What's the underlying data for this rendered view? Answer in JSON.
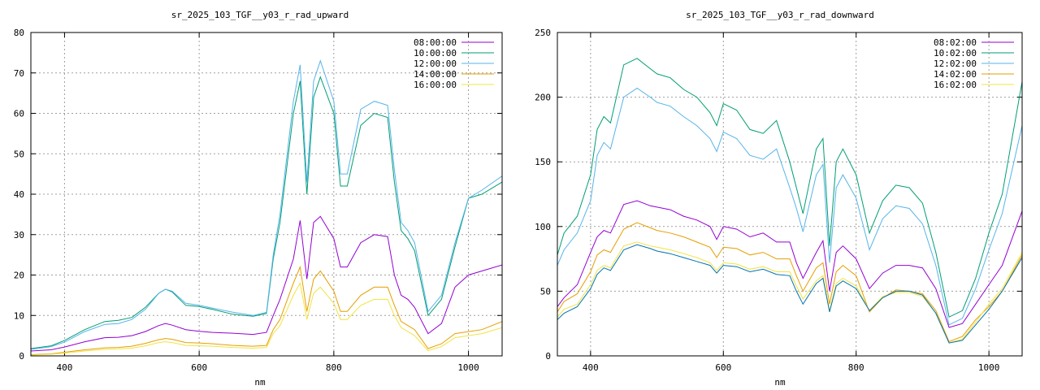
{
  "chart_data": [
    {
      "type": "line",
      "title": "sr_2025_103_TGF__y03_r_rad_upward",
      "xlabel": "nm",
      "ylabel": "",
      "xlim": [
        350,
        1050
      ],
      "ylim": [
        0,
        80
      ],
      "xticks": [
        400,
        600,
        800,
        1000
      ],
      "yticks": [
        0,
        10,
        20,
        30,
        40,
        50,
        60,
        70,
        80
      ],
      "grid": true,
      "legend": "top-right",
      "series": [
        {
          "name": "08:00:00",
          "color": "#9400d3",
          "x": [
            350,
            380,
            400,
            430,
            460,
            480,
            500,
            520,
            540,
            550,
            560,
            580,
            600,
            620,
            650,
            680,
            700,
            710,
            720,
            740,
            750,
            760,
            770,
            780,
            800,
            810,
            820,
            840,
            860,
            880,
            890,
            900,
            910,
            920,
            940,
            960,
            980,
            1000,
            1020,
            1050
          ],
          "y": [
            1.2,
            1.5,
            2.2,
            3.5,
            4.5,
            4.6,
            5.0,
            6.0,
            7.5,
            8.0,
            7.6,
            6.5,
            6.1,
            5.8,
            5.6,
            5.3,
            5.8,
            10,
            14,
            24,
            33.5,
            19,
            33,
            34.5,
            29,
            22,
            22,
            28,
            30,
            29.5,
            20,
            15,
            14,
            12,
            5.5,
            8,
            17,
            20,
            21,
            22.5
          ]
        },
        {
          "name": "10:00:00",
          "color": "#009e73",
          "x": [
            350,
            380,
            400,
            430,
            460,
            480,
            500,
            520,
            540,
            550,
            560,
            580,
            600,
            620,
            650,
            680,
            700,
            710,
            720,
            740,
            750,
            760,
            770,
            780,
            800,
            810,
            820,
            840,
            860,
            880,
            890,
            900,
            910,
            920,
            940,
            960,
            980,
            1000,
            1020,
            1050
          ],
          "y": [
            1.8,
            2.5,
            3.8,
            6.5,
            8.5,
            8.8,
            9.5,
            12,
            15.5,
            16.5,
            15.8,
            12.5,
            12.2,
            11.5,
            10.3,
            9.8,
            10.5,
            24,
            33,
            60,
            68,
            40,
            64,
            69,
            60,
            42,
            42,
            57,
            60,
            59,
            43,
            31,
            29,
            26,
            10,
            14,
            27,
            39,
            40,
            43
          ]
        },
        {
          "name": "12:00:00",
          "color": "#56b4e9",
          "x": [
            350,
            380,
            400,
            430,
            460,
            480,
            500,
            520,
            540,
            550,
            560,
            580,
            600,
            620,
            650,
            680,
            700,
            710,
            720,
            740,
            750,
            760,
            770,
            780,
            800,
            810,
            820,
            840,
            860,
            880,
            890,
            900,
            910,
            920,
            940,
            960,
            980,
            1000,
            1020,
            1050
          ],
          "y": [
            1.6,
            2.3,
            3.4,
            6.0,
            7.8,
            8.0,
            9.0,
            11.5,
            15.5,
            16.5,
            16.0,
            13.0,
            12.5,
            11.8,
            10.8,
            10.0,
            10.8,
            25,
            35,
            63,
            72,
            43,
            68,
            73,
            63,
            45,
            45,
            61,
            63,
            62,
            46,
            33,
            31,
            28,
            11,
            15,
            28,
            39,
            41,
            44.5
          ]
        },
        {
          "name": "14:00:00",
          "color": "#e69f00",
          "x": [
            350,
            380,
            400,
            430,
            460,
            480,
            500,
            520,
            540,
            550,
            560,
            580,
            600,
            620,
            650,
            680,
            700,
            710,
            720,
            740,
            750,
            760,
            770,
            780,
            800,
            810,
            820,
            840,
            860,
            880,
            890,
            900,
            910,
            920,
            940,
            960,
            980,
            1000,
            1020,
            1050
          ],
          "y": [
            0.3,
            0.5,
            0.9,
            1.5,
            2.0,
            2.1,
            2.4,
            3.1,
            4.0,
            4.3,
            4.1,
            3.3,
            3.2,
            3.0,
            2.6,
            2.4,
            2.6,
            6.5,
            9,
            18,
            22,
            11,
            19,
            21,
            16,
            11,
            11,
            15,
            17,
            17,
            12.5,
            8.5,
            7.5,
            6.5,
            1.8,
            3,
            5.5,
            6,
            6.5,
            8.5
          ]
        },
        {
          "name": "16:00:00",
          "color": "#f0e442",
          "x": [
            350,
            380,
            400,
            430,
            460,
            480,
            500,
            520,
            540,
            550,
            560,
            580,
            600,
            620,
            650,
            680,
            700,
            710,
            720,
            740,
            750,
            760,
            770,
            780,
            800,
            810,
            820,
            840,
            860,
            880,
            890,
            900,
            910,
            920,
            940,
            960,
            980,
            1000,
            1020,
            1050
          ],
          "y": [
            0.2,
            0.4,
            0.7,
            1.2,
            1.6,
            1.7,
            1.9,
            2.5,
            3.3,
            3.5,
            3.3,
            2.6,
            2.5,
            2.4,
            2.1,
            1.9,
            2.1,
            5.5,
            7.5,
            15,
            18,
            9,
            15.5,
            17,
            13,
            9,
            9,
            12.5,
            14,
            14,
            10,
            7,
            6,
            5,
            1.3,
            2.3,
            4.5,
            5,
            5.5,
            7
          ]
        }
      ]
    },
    {
      "type": "line",
      "title": "sr_2025_103_TGF__y03_r_rad_downward",
      "xlabel": "nm",
      "ylabel": "",
      "xlim": [
        350,
        1050
      ],
      "ylim": [
        0,
        250
      ],
      "xticks": [
        400,
        600,
        800,
        1000
      ],
      "yticks": [
        0,
        50,
        100,
        150,
        200,
        250
      ],
      "grid": true,
      "legend": "top-right",
      "series": [
        {
          "name": "08:02:00",
          "color": "#9400d3",
          "x": [
            350,
            360,
            380,
            400,
            410,
            420,
            430,
            450,
            470,
            490,
            500,
            520,
            540,
            560,
            580,
            590,
            600,
            620,
            640,
            660,
            680,
            700,
            710,
            720,
            740,
            750,
            760,
            770,
            780,
            800,
            820,
            840,
            860,
            880,
            900,
            920,
            940,
            960,
            980,
            1000,
            1020,
            1050
          ],
          "y": [
            38,
            45,
            55,
            80,
            92,
            97,
            95,
            117,
            120,
            116,
            115,
            113,
            108,
            105,
            100,
            90,
            100,
            98,
            92,
            95,
            88,
            88,
            72,
            60,
            80,
            89,
            50,
            80,
            85,
            75,
            52,
            64,
            70,
            70,
            68,
            52,
            22,
            25,
            40,
            55,
            70,
            112
          ]
        },
        {
          "name": "10:02:00",
          "color": "#009e73",
          "x": [
            350,
            360,
            380,
            400,
            410,
            420,
            430,
            450,
            470,
            490,
            500,
            520,
            540,
            560,
            580,
            590,
            600,
            620,
            640,
            660,
            680,
            700,
            710,
            720,
            740,
            750,
            760,
            770,
            780,
            800,
            820,
            840,
            860,
            880,
            900,
            920,
            940,
            960,
            980,
            1000,
            1020,
            1050
          ],
          "y": [
            78,
            95,
            108,
            140,
            175,
            185,
            180,
            225,
            230,
            222,
            218,
            215,
            206,
            200,
            188,
            178,
            195,
            190,
            175,
            172,
            182,
            150,
            130,
            110,
            160,
            168,
            85,
            150,
            160,
            140,
            95,
            120,
            132,
            130,
            118,
            80,
            30,
            35,
            60,
            95,
            125,
            212
          ]
        },
        {
          "name": "12:02:00",
          "color": "#56b4e9",
          "x": [
            350,
            360,
            380,
            400,
            410,
            420,
            430,
            450,
            470,
            490,
            500,
            520,
            540,
            560,
            580,
            590,
            600,
            620,
            640,
            660,
            680,
            700,
            710,
            720,
            740,
            750,
            760,
            770,
            780,
            800,
            820,
            840,
            860,
            880,
            900,
            920,
            940,
            960,
            980,
            1000,
            1020,
            1050
          ],
          "y": [
            70,
            82,
            95,
            120,
            155,
            165,
            160,
            200,
            207,
            200,
            196,
            193,
            185,
            178,
            168,
            158,
            173,
            168,
            155,
            152,
            160,
            130,
            114,
            96,
            140,
            148,
            72,
            130,
            140,
            122,
            82,
            106,
            116,
            114,
            102,
            70,
            24,
            29,
            52,
            82,
            110,
            178
          ]
        },
        {
          "name": "14:02:00",
          "color": "#e69f00",
          "x": [
            350,
            360,
            380,
            400,
            410,
            420,
            430,
            450,
            470,
            490,
            500,
            520,
            540,
            560,
            580,
            590,
            600,
            620,
            640,
            660,
            680,
            700,
            710,
            720,
            740,
            750,
            760,
            770,
            780,
            800,
            820,
            840,
            860,
            880,
            900,
            920,
            940,
            960,
            980,
            1000,
            1020,
            1050
          ],
          "y": [
            34,
            42,
            48,
            65,
            78,
            82,
            80,
            98,
            103,
            99,
            97,
            95,
            92,
            88,
            84,
            76,
            84,
            83,
            78,
            80,
            75,
            75,
            62,
            50,
            68,
            72,
            40,
            65,
            70,
            62,
            34,
            45,
            51,
            50,
            48,
            35,
            11,
            15,
            28,
            38,
            50,
            78
          ]
        },
        {
          "name": "16:02:00",
          "color": "#f0e442",
          "x": [
            350,
            360,
            380,
            400,
            410,
            420,
            430,
            450,
            470,
            490,
            500,
            520,
            540,
            560,
            580,
            590,
            600,
            620,
            640,
            660,
            680,
            700,
            710,
            720,
            740,
            750,
            760,
            770,
            780,
            800,
            820,
            840,
            860,
            880,
            900,
            920,
            940,
            960,
            980,
            1000,
            1020,
            1050
          ],
          "y": [
            30,
            36,
            40,
            55,
            66,
            70,
            68,
            85,
            88,
            85,
            84,
            82,
            79,
            76,
            72,
            66,
            72,
            71,
            67,
            69,
            65,
            65,
            54,
            44,
            58,
            62,
            35,
            56,
            60,
            54,
            35,
            46,
            49,
            49,
            46,
            33,
            10,
            13,
            26,
            40,
            52,
            80
          ]
        },
        {
          "name": "",
          "color": "#0072b2",
          "x": [
            350,
            360,
            380,
            400,
            410,
            420,
            430,
            450,
            470,
            490,
            500,
            520,
            540,
            560,
            580,
            590,
            600,
            620,
            640,
            660,
            680,
            700,
            710,
            720,
            740,
            750,
            760,
            770,
            780,
            800,
            820,
            840,
            860,
            880,
            900,
            920,
            940,
            960,
            980,
            1000,
            1020,
            1050
          ],
          "y": [
            28,
            33,
            38,
            52,
            63,
            68,
            66,
            82,
            86,
            83,
            81,
            79,
            76,
            73,
            70,
            64,
            70,
            69,
            65,
            67,
            63,
            62,
            50,
            40,
            56,
            60,
            34,
            54,
            58,
            52,
            35,
            45,
            50,
            50,
            47,
            33,
            10,
            12,
            24,
            36,
            50,
            76
          ]
        }
      ]
    }
  ]
}
